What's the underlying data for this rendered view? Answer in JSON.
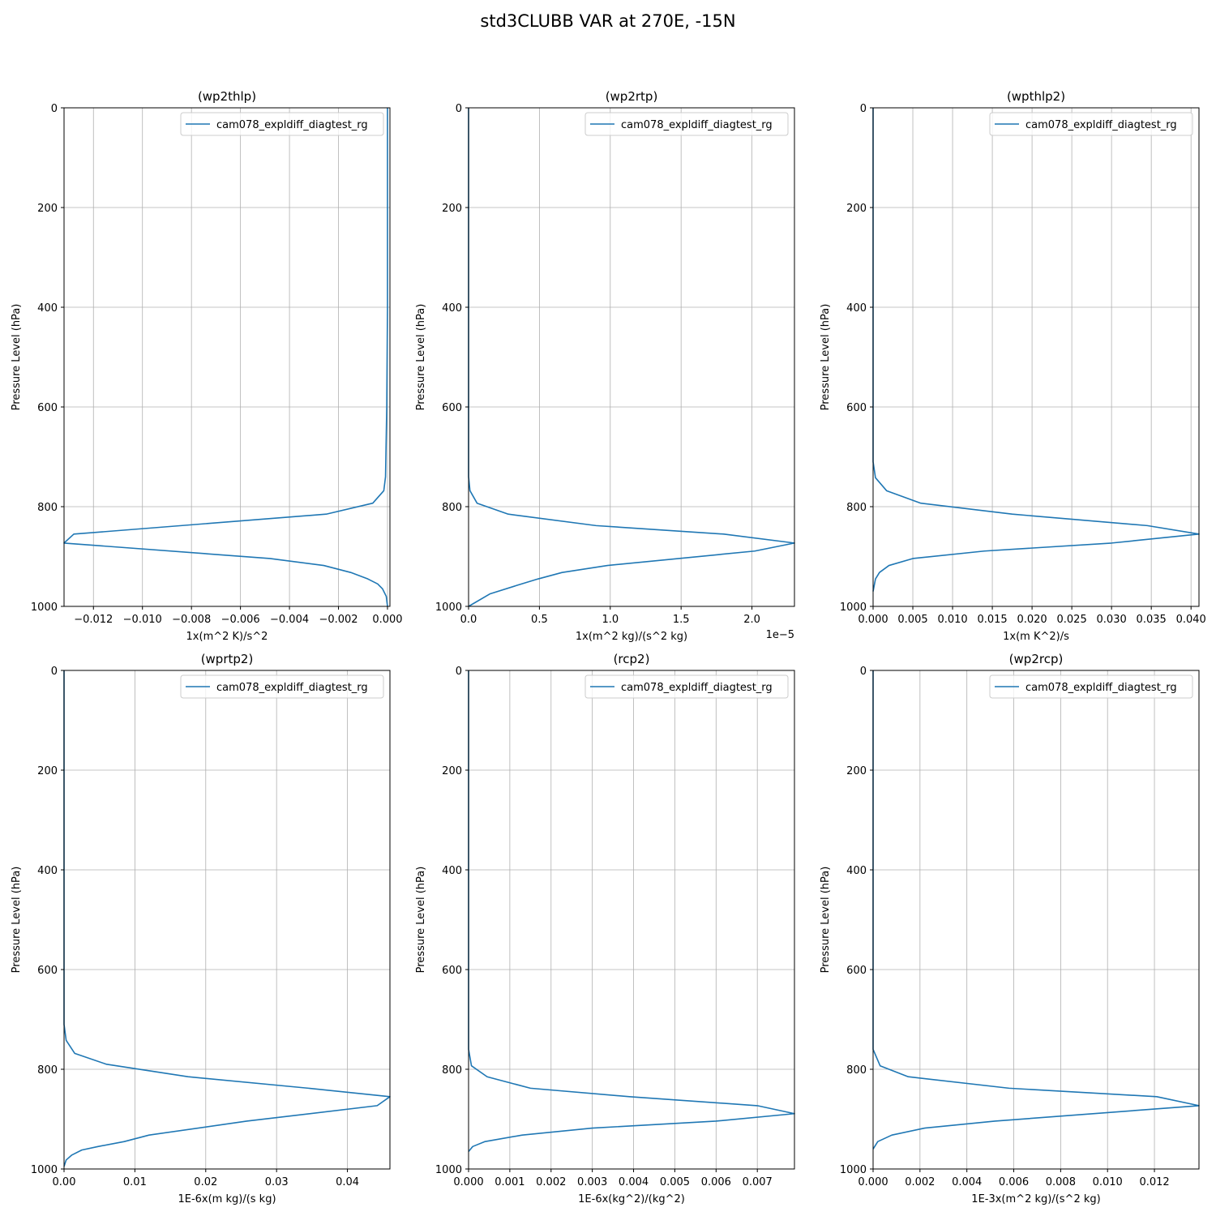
{
  "figure": {
    "title": "std3CLUBB VAR at 270E, -15N",
    "line_color": "#1f77b4"
  },
  "chart_data": [
    {
      "type": "line",
      "title": "(wp2thlp)",
      "xlabel": "1x(m^2 K)/s^2",
      "ylabel": "Pressure Level (hPa)",
      "legend": [
        "cam078_expldiff_diagtest_rg"
      ],
      "legend_position": "top-right",
      "grid": true,
      "offset_text": "",
      "xlim": [
        -0.0132,
        0.0001
      ],
      "ylim": [
        1000,
        0
      ],
      "xticks": [
        -0.012,
        -0.01,
        -0.008,
        -0.006,
        -0.004,
        -0.002,
        0.0
      ],
      "xtick_labels": [
        "−0.012",
        "−0.010",
        "−0.008",
        "−0.006",
        "−0.004",
        "−0.002",
        "0.000"
      ],
      "yticks": [
        0,
        200,
        400,
        600,
        800,
        1000
      ],
      "ytick_labels": [
        "0",
        "200",
        "400",
        "600",
        "800",
        "1000"
      ],
      "series": [
        {
          "name": "cam078_expldiff_diagtest_rg",
          "x": [
            0.0,
            0.0,
            0.0,
            -3e-05,
            -8e-05,
            -0.00015,
            -0.0006,
            -0.0025,
            -0.0128,
            -0.0132,
            -0.0048,
            -0.0026,
            -0.0015,
            -0.0008,
            -0.0004,
            -0.0002,
            -5e-05,
            0.0
          ],
          "y": [
            0,
            150,
            400,
            600,
            740,
            768,
            793,
            815,
            855,
            873,
            904,
            918,
            932,
            945,
            955,
            965,
            980,
            1000
          ]
        }
      ]
    },
    {
      "type": "line",
      "title": "(wp2rtp)",
      "xlabel": "1x(m^2 kg)/(s^2 kg)",
      "ylabel": "Pressure Level (hPa)",
      "legend": [
        "cam078_expldiff_diagtest_rg"
      ],
      "legend_position": "top-right",
      "grid": true,
      "offset_text": "1e−5",
      "xlim": [
        0,
        2.3
      ],
      "ylim": [
        1000,
        0
      ],
      "xticks": [
        0.0,
        0.5,
        1.0,
        1.5,
        2.0
      ],
      "xtick_labels": [
        "0.0",
        "0.5",
        "1.0",
        "1.5",
        "2.0"
      ],
      "yticks": [
        0,
        200,
        400,
        600,
        800,
        1000
      ],
      "ytick_labels": [
        "0",
        "200",
        "400",
        "600",
        "800",
        "1000"
      ],
      "series": [
        {
          "name": "cam078_expldiff_diagtest_rg",
          "x": [
            0.0,
            0.0,
            0.01,
            0.06,
            0.28,
            0.9,
            1.8,
            2.3,
            2.02,
            0.98,
            0.66,
            0.49,
            0.34,
            0.15,
            0.0
          ],
          "y": [
            0,
            740,
            768,
            793,
            815,
            838,
            855,
            873,
            889,
            918,
            932,
            945,
            958,
            975,
            1000
          ]
        }
      ]
    },
    {
      "type": "line",
      "title": "(wpthlp2)",
      "xlabel": "1x(m K^2)/s",
      "ylabel": "Pressure Level (hPa)",
      "legend": [
        "cam078_expldiff_diagtest_rg"
      ],
      "legend_position": "top-right",
      "grid": true,
      "offset_text": "",
      "xlim": [
        0,
        0.041
      ],
      "ylim": [
        1000,
        0
      ],
      "xticks": [
        0.0,
        0.005,
        0.01,
        0.015,
        0.02,
        0.025,
        0.03,
        0.035,
        0.04
      ],
      "xtick_labels": [
        "0.000",
        "0.005",
        "0.010",
        "0.015",
        "0.020",
        "0.025",
        "0.030",
        "0.035",
        "0.040"
      ],
      "yticks": [
        0,
        200,
        400,
        600,
        800,
        1000
      ],
      "ytick_labels": [
        "0",
        "200",
        "400",
        "600",
        "800",
        "1000"
      ],
      "series": [
        {
          "name": "cam078_expldiff_diagtest_rg",
          "x": [
            0.0,
            0.0,
            0.0003,
            0.0017,
            0.006,
            0.0175,
            0.0345,
            0.041,
            0.03,
            0.014,
            0.005,
            0.002,
            0.0008,
            0.0003,
            0.0
          ],
          "y": [
            0,
            710,
            742,
            768,
            793,
            815,
            838,
            855,
            873,
            889,
            904,
            918,
            932,
            945,
            970
          ]
        }
      ]
    },
    {
      "type": "line",
      "title": "(wprtp2)",
      "xlabel": "1E-6x(m kg)/(s kg)",
      "ylabel": "Pressure Level (hPa)",
      "legend": [
        "cam078_expldiff_diagtest_rg"
      ],
      "legend_position": "top-right",
      "grid": true,
      "offset_text": "",
      "xlim": [
        0,
        0.046
      ],
      "ylim": [
        1000,
        0
      ],
      "xticks": [
        0.0,
        0.01,
        0.02,
        0.03,
        0.04
      ],
      "xtick_labels": [
        "0.00",
        "0.01",
        "0.02",
        "0.03",
        "0.04"
      ],
      "yticks": [
        0,
        200,
        400,
        600,
        800,
        1000
      ],
      "ytick_labels": [
        "0",
        "200",
        "400",
        "600",
        "800",
        "1000"
      ],
      "series": [
        {
          "name": "cam078_expldiff_diagtest_rg",
          "x": [
            0.0,
            0.0,
            0.0003,
            0.0015,
            0.006,
            0.0175,
            0.0345,
            0.046,
            0.0442,
            0.0258,
            0.012,
            0.0085,
            0.0048,
            0.0025,
            0.0011,
            0.0003,
            0.0
          ],
          "y": [
            0,
            710,
            742,
            768,
            790,
            815,
            838,
            855,
            873,
            904,
            932,
            945,
            955,
            962,
            972,
            982,
            995
          ]
        }
      ]
    },
    {
      "type": "line",
      "title": "(rcp2)",
      "xlabel": "1E-6x(kg^2)/(kg^2)",
      "ylabel": "Pressure Level (hPa)",
      "legend": [
        "cam078_expldiff_diagtest_rg"
      ],
      "legend_position": "top-right",
      "grid": true,
      "offset_text": "",
      "xlim": [
        0,
        0.0079
      ],
      "ylim": [
        1000,
        0
      ],
      "xticks": [
        0.0,
        0.001,
        0.002,
        0.003,
        0.004,
        0.005,
        0.006,
        0.007
      ],
      "xtick_labels": [
        "0.000",
        "0.001",
        "0.002",
        "0.003",
        "0.004",
        "0.005",
        "0.006",
        "0.007"
      ],
      "yticks": [
        0,
        200,
        400,
        600,
        800,
        1000
      ],
      "ytick_labels": [
        "0",
        "200",
        "400",
        "600",
        "800",
        "1000"
      ],
      "series": [
        {
          "name": "cam078_expldiff_diagtest_rg",
          "x": [
            0.0,
            0.0,
            7e-05,
            0.00045,
            0.0015,
            0.0039,
            0.007,
            0.0079,
            0.006,
            0.003,
            0.0013,
            0.0004,
            0.0001,
            0.0
          ],
          "y": [
            0,
            760,
            793,
            815,
            838,
            855,
            873,
            889,
            904,
            918,
            932,
            945,
            955,
            965
          ]
        }
      ]
    },
    {
      "type": "line",
      "title": "(wp2rcp)",
      "xlabel": "1E-3x(m^2 kg)/(s^2 kg)",
      "ylabel": "Pressure Level (hPa)",
      "legend": [
        "cam078_expldiff_diagtest_rg"
      ],
      "legend_position": "top-right",
      "grid": true,
      "offset_text": "",
      "xlim": [
        0,
        0.0139
      ],
      "ylim": [
        1000,
        0
      ],
      "xticks": [
        0.0,
        0.002,
        0.004,
        0.006,
        0.008,
        0.01,
        0.012
      ],
      "xtick_labels": [
        "0.000",
        "0.002",
        "0.004",
        "0.006",
        "0.008",
        "0.010",
        "0.012"
      ],
      "yticks": [
        0,
        200,
        400,
        600,
        800,
        1000
      ],
      "ytick_labels": [
        "0",
        "200",
        "400",
        "600",
        "800",
        "1000"
      ],
      "series": [
        {
          "name": "cam078_expldiff_diagtest_rg",
          "x": [
            0.0,
            0.0,
            0.0003,
            0.0015,
            0.0058,
            0.0121,
            0.0139,
            0.0052,
            0.0022,
            0.0008,
            0.0002,
            0.0
          ],
          "y": [
            0,
            760,
            793,
            815,
            838,
            855,
            873,
            904,
            918,
            932,
            945,
            960
          ]
        }
      ]
    }
  ]
}
